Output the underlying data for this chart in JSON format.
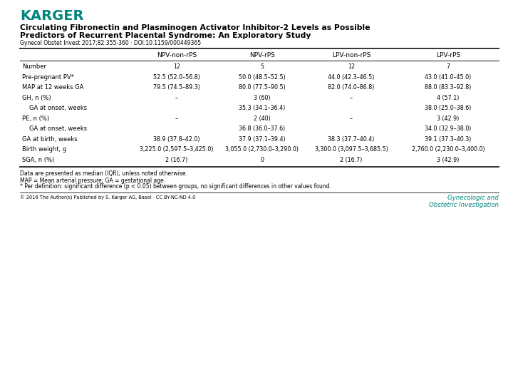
{
  "title_line1": "Circulating Fibronectin and Plasminogen Activator Inhibitor-2 Levels as Possible",
  "title_line2": "Predictors of Recurrent Placental Syndrome: An Exploratory Study",
  "subtitle": "Gynecol Obstet Invest 2017;82:355-360 · DOI:10.1159/000449365",
  "karger_color": "#00857C",
  "journal_color": "#00857C",
  "journal_text_line1": "Gynecologic and",
  "journal_text_line2": "Obstetric Investigation",
  "copyright_text": "© 2016 The Author(s) Published by S. Karger AG, Basel · CC BY-NC-ND 4.0",
  "col_headers": [
    "",
    "NPV-non-rPS",
    "NPV-rPS",
    "LPV-non-rPS",
    "LPV-rPS"
  ],
  "rows": [
    [
      "Number",
      "12",
      "5",
      "12",
      "7"
    ],
    [
      "Pre-pregnant PV*",
      "52.5 (52.0–56.8)",
      "50.0 (48.5–52.5)",
      "44.0 (42.3–46.5)",
      "43.0 (41.0–45.0)"
    ],
    [
      "MAP at 12 weeks GA",
      "79.5 (74.5–89.3)",
      "80.0 (77.5–90.5)",
      "82.0 (74.0–86.8)",
      "88.0 (83.3–92.8)"
    ],
    [
      "GH, n (%)",
      "–",
      "3 (60)",
      "–",
      "4 (57.1)"
    ],
    [
      "   GA at onset, weeks",
      "",
      "35.3 (34.1–36.4)",
      "",
      "38.0 (25.0–38.6)"
    ],
    [
      "PE, n (%)",
      "–",
      "2 (40)",
      "–",
      "3 (42.9)"
    ],
    [
      "   GA at onset, weeks",
      "",
      "36.8 (36.0–37.6)",
      "",
      "34.0 (32.9–38.0)"
    ],
    [
      "GA at birth, weeks",
      "38.9 (37.8–42.0)",
      "37.9 (37.1–39.4)",
      "38.3 (37.7–40.4)",
      "39.1 (37.3–40.3)"
    ],
    [
      "Birth weight, g",
      "3,225.0 (2,597.5–3,425.0)",
      "3,055.0 (2,730.0–3,290.0)",
      "3,300.0 (3,097.5–3,685.5)",
      "2,760.0 (2,230.0–3,400.0)"
    ],
    [
      "SGA, n (%)",
      "2 (16.7)",
      "0",
      "2 (16.7)",
      "3 (42.9)"
    ]
  ],
  "footnotes": [
    "Data are presented as median (IQR), unless noted otherwise.",
    "MAP = Mean arterial pressure; GA = gestational age.",
    "* Per definition: significant difference (p < 0.05) between groups, no significant differences in other values found."
  ],
  "bg_color": "#ffffff",
  "text_color": "#000000"
}
